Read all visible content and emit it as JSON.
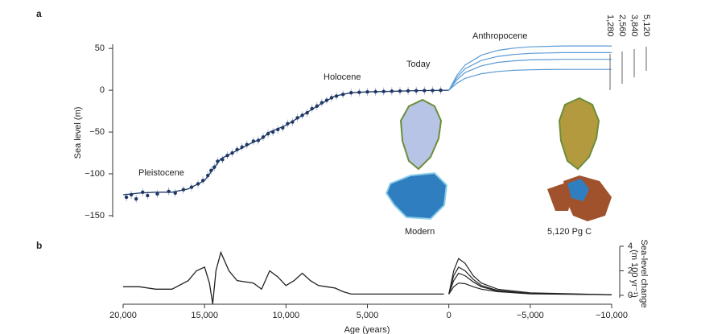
{
  "chart_data": [
    {
      "type": "line",
      "panel_label": "a",
      "ylabel": "Sea level (m)",
      "xlim": [
        20000,
        -10000
      ],
      "ylim": [
        -152,
        55
      ],
      "yticks": [
        50,
        0,
        {
          "value": -50,
          "label": "−50"
        },
        {
          "value": -100,
          "label": "−100"
        },
        {
          "value": -150,
          "label": "−150"
        }
      ],
      "annotations": [
        "Pleistocene",
        "Holocene",
        "Today",
        "Anthropocene",
        "Modern",
        "5,120 Pg C"
      ],
      "scatter": {
        "color": "#1f3864",
        "x": [
          19800,
          19500,
          19200,
          18800,
          18500,
          17900,
          17200,
          16800,
          16300,
          15800,
          15400,
          15100,
          14800,
          14600,
          14400,
          14200,
          13900,
          13600,
          13300,
          13000,
          12700,
          12400,
          12000,
          11700,
          11400,
          11100,
          10800,
          10500,
          10200,
          9900,
          9600,
          9300,
          9000,
          8700,
          8400,
          8100,
          7800,
          7500,
          7200,
          6900,
          6500,
          6000,
          5500,
          5000,
          4500,
          4000,
          3500,
          3000,
          2500,
          2000,
          1500,
          1000,
          500
        ],
        "y": [
          -128,
          -125,
          -130,
          -122,
          -126,
          -124,
          -121,
          -123,
          -119,
          -116,
          -112,
          -108,
          -102,
          -96,
          -92,
          -85,
          -83,
          -78,
          -75,
          -71,
          -68,
          -65,
          -61,
          -60,
          -56,
          -52,
          -50,
          -47,
          -45,
          -40,
          -38,
          -33,
          -30,
          -27,
          -22,
          -19,
          -15,
          -12,
          -9,
          -7,
          -5,
          -3,
          -2.5,
          -2,
          -1.8,
          -1.5,
          -1.2,
          -1,
          -0.8,
          -0.6,
          -0.4,
          -0.3,
          -0.1
        ]
      },
      "series": [
        {
          "color": "#1f3864",
          "x": [
            20000,
            19000,
            18000,
            17000,
            16000,
            15000,
            14500,
            14000,
            13000,
            12000,
            11500,
            11000,
            10000,
            9000,
            8000,
            7000,
            6000,
            5000,
            4000,
            3000,
            2000,
            1000,
            0
          ],
          "values": [
            -125,
            -123,
            -122,
            -122,
            -118,
            -108,
            -95,
            -82,
            -72,
            -62,
            -58,
            -50,
            -42,
            -30,
            -18,
            -7,
            -3,
            -2,
            -1.5,
            -1,
            -0.5,
            -0.3,
            0
          ]
        },
        {
          "name": "5,120",
          "color": "#5b9bd5",
          "x": [
            0,
            -500,
            -1000,
            -2000,
            -3000,
            -4000,
            -5000,
            -6000,
            -7000,
            -8000,
            -10000
          ],
          "values": [
            0,
            18,
            30.2,
            41.9,
            47.7,
            50.4,
            51.9,
            52.5,
            53,
            53,
            53
          ]
        },
        {
          "name": "3,840",
          "color": "#5b9bd5",
          "x": [
            0,
            -500,
            -1000,
            -2000,
            -3000,
            -4000,
            -5000,
            -6000,
            -7000,
            -8000,
            -10000
          ],
          "values": [
            0,
            15.3,
            25.7,
            35.6,
            40.5,
            42.8,
            44.1,
            44.6,
            45,
            45,
            45
          ]
        },
        {
          "name": "2,560",
          "color": "#5b9bd5",
          "x": [
            0,
            -500,
            -1000,
            -2000,
            -3000,
            -4000,
            -5000,
            -6000,
            -7000,
            -8000,
            -10000
          ],
          "values": [
            0,
            12.6,
            21.1,
            29.2,
            33.3,
            35.2,
            36.3,
            36.6,
            37,
            37,
            37
          ]
        },
        {
          "name": "1,280",
          "color": "#5b9bd5",
          "x": [
            0,
            -500,
            -1000,
            -2000,
            -3000,
            -4000,
            -5000,
            -6000,
            -7000,
            -8000,
            -10000
          ],
          "values": [
            0,
            8.5,
            14.3,
            19.8,
            22.5,
            23.8,
            24.5,
            24.8,
            25,
            25,
            25
          ]
        }
      ]
    },
    {
      "type": "line",
      "panel_label": "b",
      "ylabel": [
        "Sea-level change",
        "(m 100 yr⁻¹)"
      ],
      "xlabel": "Age (years)",
      "xlim": [
        20000,
        -10000
      ],
      "ylim": [
        -0.2,
        4
      ],
      "xticks": [
        {
          "value": 20000,
          "label": "20,000"
        },
        {
          "value": 15000,
          "label": "15,000"
        },
        {
          "value": 10000,
          "label": "10,000"
        },
        {
          "value": 5000,
          "label": "5,000"
        },
        0,
        {
          "value": -5000,
          "label": "−5,000"
        },
        {
          "value": -10000,
          "label": "−10,000"
        }
      ],
      "yticks": [
        0,
        2,
        4
      ],
      "series": [
        {
          "color": "#222222",
          "x": [
            20000,
            19000,
            18000,
            17000,
            16000,
            15500,
            15000,
            14700,
            14500,
            14300,
            14000,
            13500,
            13000,
            12000,
            11500,
            11000,
            10500,
            10000,
            9500,
            9000,
            8500,
            8000,
            7500,
            7000,
            6500,
            6000,
            5000,
            2000,
            300
          ],
          "values": [
            0.7,
            0.7,
            0.5,
            0.5,
            1.2,
            2.0,
            2.3,
            1.0,
            -0.7,
            2.0,
            3.5,
            2.0,
            1.2,
            1.0,
            0.5,
            2.0,
            1.5,
            0.8,
            1.2,
            1.8,
            1.2,
            0.8,
            0.7,
            0.6,
            0.3,
            0.1,
            0.1,
            0.1,
            0.1
          ]
        },
        {
          "color": "#222222",
          "x": [
            0,
            -300,
            -600,
            -1000,
            -1500,
            -2000,
            -3000,
            -5000,
            -10000
          ],
          "values": [
            0.1,
            2.0,
            3.0,
            2.6,
            1.6,
            1.0,
            0.5,
            0.2,
            0.05
          ]
        },
        {
          "color": "#222222",
          "x": [
            0,
            -300,
            -600,
            -1000,
            -1500,
            -2000,
            -3000,
            -5000,
            -10000
          ],
          "values": [
            0.1,
            1.6,
            2.3,
            2.0,
            1.3,
            0.8,
            0.4,
            0.15,
            0.05
          ]
        },
        {
          "color": "#222222",
          "x": [
            0,
            -300,
            -600,
            -1000,
            -1500,
            -2000,
            -3000,
            -5000,
            -10000
          ],
          "values": [
            0.1,
            1.2,
            1.8,
            1.6,
            1.1,
            0.7,
            0.35,
            0.15,
            0.05
          ]
        },
        {
          "color": "#222222",
          "x": [
            0,
            -300,
            -600,
            -1000,
            -1500,
            -2000,
            -3000,
            -5000,
            -10000
          ],
          "values": [
            0.1,
            0.7,
            1.0,
            0.95,
            0.7,
            0.5,
            0.3,
            0.12,
            0.05
          ]
        }
      ]
    }
  ]
}
